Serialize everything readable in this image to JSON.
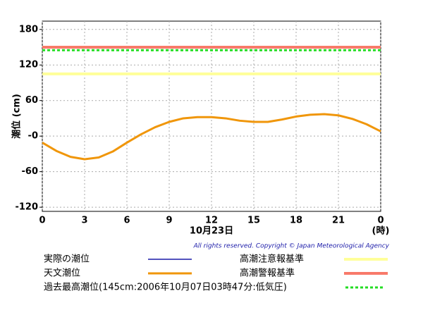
{
  "chart_data": {
    "type": "line",
    "y_label": "潮位 (cm)",
    "x_label": "10月23日",
    "x_unit": "(時)",
    "copyright": "All rights reserved. Copyright © Japan Meteorological Agency",
    "x": [
      0,
      1,
      2,
      3,
      4,
      5,
      6,
      7,
      8,
      9,
      10,
      11,
      12,
      13,
      14,
      15,
      16,
      17,
      18,
      19,
      20,
      21,
      22,
      23,
      24
    ],
    "series": [
      {
        "name": "実際の潮位",
        "color": "#1a1aa8",
        "values": [
          null,
          null,
          null,
          null,
          null,
          null,
          null,
          null,
          null,
          null,
          null,
          null,
          null,
          null,
          null,
          null,
          null,
          null,
          null,
          null,
          null,
          null,
          null,
          null,
          null
        ]
      },
      {
        "name": "天文潮位",
        "color": "#f0960a",
        "values": [
          -11,
          -25,
          -35,
          -39,
          -36,
          -26,
          -11,
          3,
          15,
          24,
          30,
          32,
          32,
          30,
          26,
          24,
          24,
          28,
          33,
          36,
          37,
          35,
          29,
          20,
          8
        ]
      }
    ],
    "reference_lines": [
      {
        "name": "高潮注意報基準",
        "color": "#ffff99",
        "value": 105,
        "style": "solid"
      },
      {
        "name": "高潮警報基準",
        "color": "#f87a6a",
        "value": 150,
        "style": "solid"
      },
      {
        "name": "過去最高潮位(145cm:2006年10月07日03時47分:低気圧)",
        "color": "#22dd22",
        "value": 145,
        "style": "dotted"
      }
    ],
    "xlim": [
      0,
      24
    ],
    "xticks": [
      0,
      3,
      6,
      9,
      12,
      15,
      18,
      21,
      {
        "value": 24,
        "label": "0"
      }
    ],
    "ylim": [
      -127,
      194
    ],
    "yticks": [
      {
        "value": -120,
        "label": "-120"
      },
      {
        "value": -60,
        "label": "-60"
      },
      {
        "value": 0,
        "label": "-0"
      },
      60,
      120,
      180
    ],
    "grid": true
  }
}
